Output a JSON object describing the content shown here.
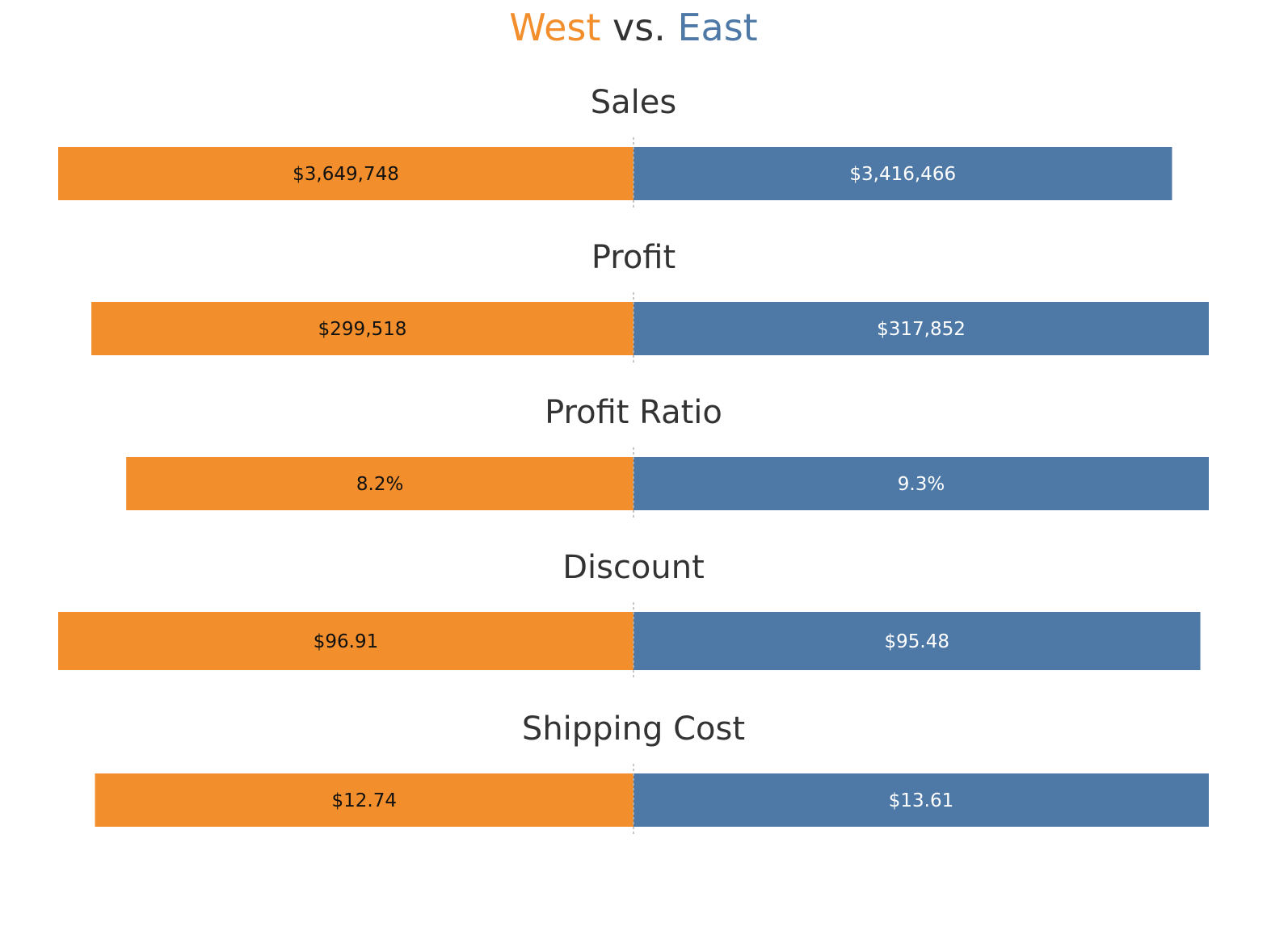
{
  "chart_title": {
    "west": "West",
    "vs": "vs.",
    "east": "East"
  },
  "colors": {
    "west": "#f28e2b",
    "east": "#4e79a7",
    "axis_line": "#b5b5b5",
    "title_text": "#333333"
  },
  "chart_data": {
    "type": "bar",
    "orientation": "diverging-horizontal",
    "series": [
      {
        "name": "West",
        "color": "#f28e2b"
      },
      {
        "name": "East",
        "color": "#4e79a7"
      }
    ],
    "panels": [
      {
        "title": "Sales",
        "west": 3649748,
        "east": 3416466,
        "west_label": "$3,649,748",
        "east_label": "$3,416,466"
      },
      {
        "title": "Profit",
        "west": 299518,
        "east": 317852,
        "west_label": "$299,518",
        "east_label": "$317,852"
      },
      {
        "title": "Profit Ratio",
        "west": 8.2,
        "east": 9.3,
        "west_label": "8.2%",
        "east_label": "9.3%"
      },
      {
        "title": "Discount",
        "west": 96.91,
        "east": 95.48,
        "west_label": "$96.91",
        "east_label": "$95.48"
      },
      {
        "title": "Shipping Cost",
        "west": 12.74,
        "east": 13.61,
        "west_label": "$12.74",
        "east_label": "$13.61"
      }
    ],
    "grid": false,
    "legend": "title"
  }
}
